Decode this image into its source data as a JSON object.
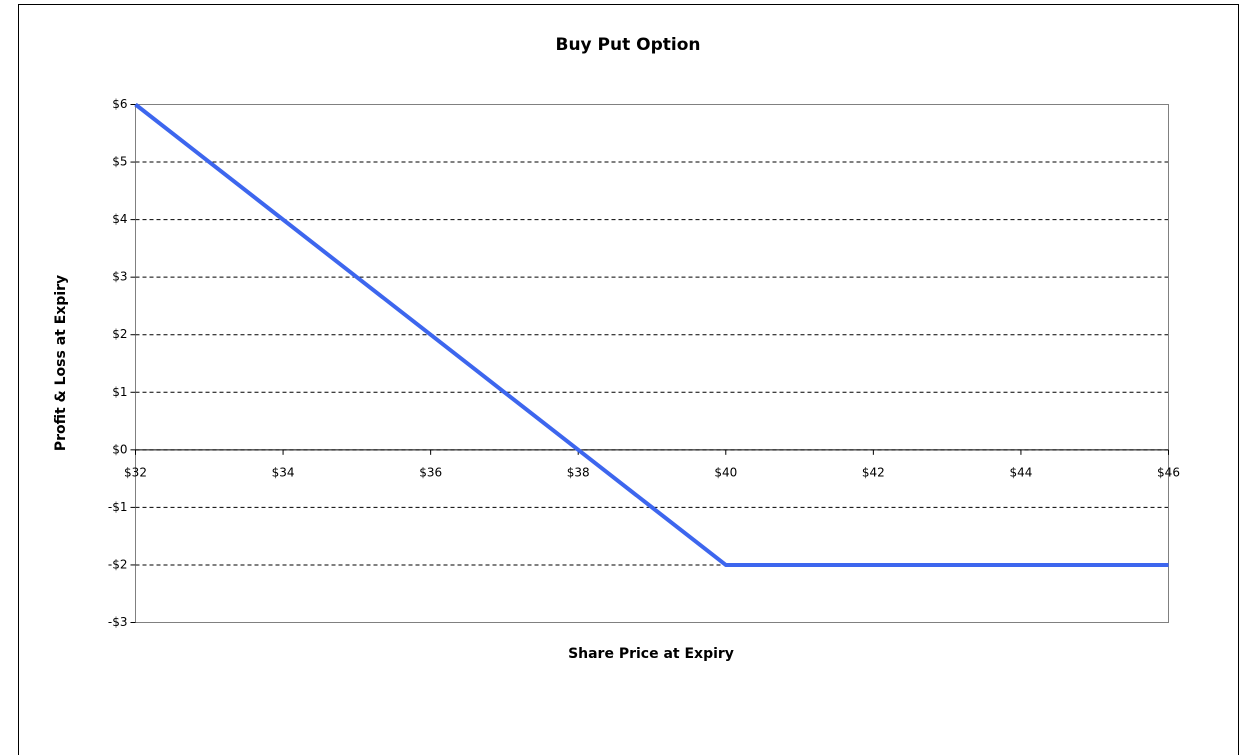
{
  "chart_data": {
    "type": "line",
    "title": "Buy Put Option",
    "x_label": "Share Price at Expiry",
    "y_label": "Profit & Loss at Expiry",
    "x": [
      32,
      33,
      34,
      35,
      36,
      37,
      38,
      39,
      40,
      41,
      42,
      43,
      44,
      45,
      46
    ],
    "series": [
      {
        "name": "Buy Put Option",
        "color": "#3d66ee",
        "values": [
          6,
          5,
          4,
          3,
          2,
          1,
          0,
          -1,
          -2,
          -2,
          -2,
          -2,
          -2,
          -2,
          -2
        ]
      }
    ],
    "xlim": [
      32,
      46
    ],
    "xticks": [
      {
        "value": 32,
        "label": "$32"
      },
      {
        "value": 34,
        "label": "$34"
      },
      {
        "value": 36,
        "label": "$36"
      },
      {
        "value": 38,
        "label": "$38"
      },
      {
        "value": 40,
        "label": "$40"
      },
      {
        "value": 42,
        "label": "$42"
      },
      {
        "value": 44,
        "label": "$44"
      },
      {
        "value": 46,
        "label": "$46"
      }
    ],
    "ylim": [
      -3,
      6
    ],
    "yticks": [
      {
        "value": -3,
        "label": "-$3"
      },
      {
        "value": -2,
        "label": "-$2"
      },
      {
        "value": -1,
        "label": "-$1"
      },
      {
        "value": 0,
        "label": "$0"
      },
      {
        "value": 1,
        "label": "$1"
      },
      {
        "value": 2,
        "label": "$2"
      },
      {
        "value": 3,
        "label": "$3"
      },
      {
        "value": 4,
        "label": "$4"
      },
      {
        "value": 5,
        "label": "$5"
      },
      {
        "value": 6,
        "label": "$6"
      }
    ],
    "grid": true
  }
}
